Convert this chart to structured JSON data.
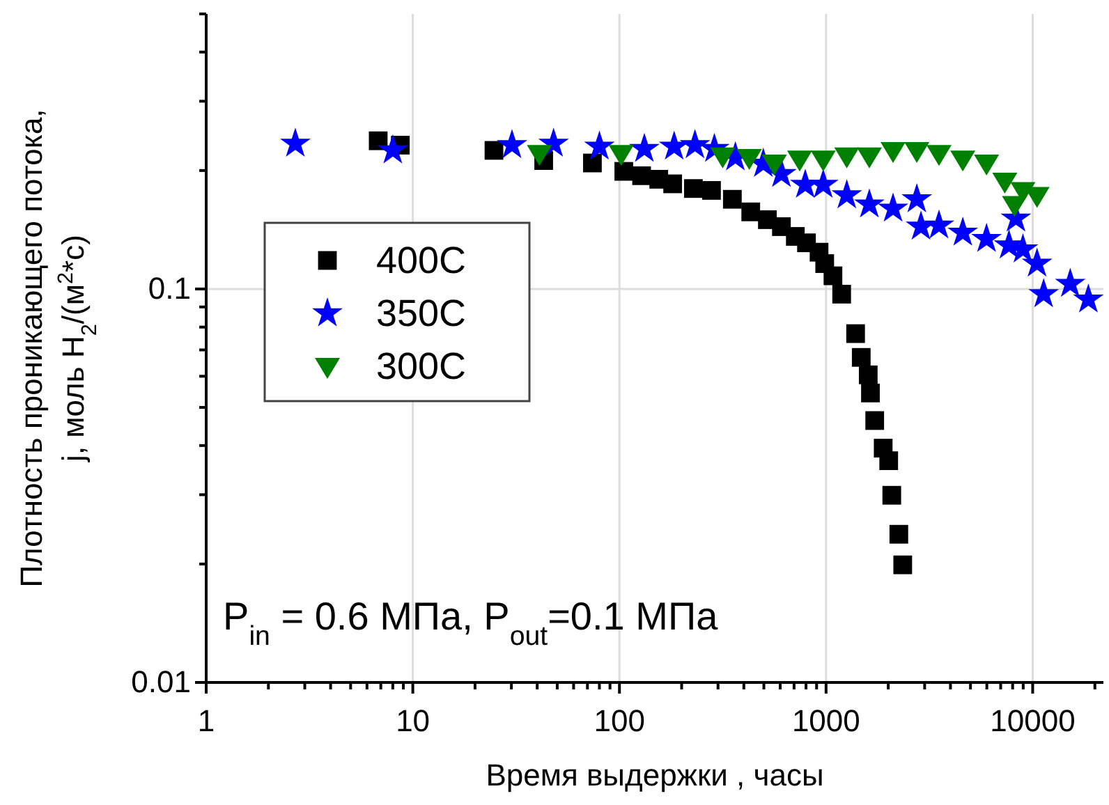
{
  "chart_data": {
    "type": "scatter",
    "xlabel": "Время выдержки , часы",
    "ylabel": "Плотность проникающего потока,\nj, моль H$_{2}$/(м$^{2}$*c)",
    "log": "xy",
    "grid": true,
    "legend": "left",
    "xlim": [
      1,
      22000
    ],
    "ylim": [
      0.01,
      0.5
    ],
    "xticks": [
      1,
      {
        "value": 2,
        "label": null
      },
      {
        "value": 3,
        "label": null
      },
      {
        "value": 4,
        "label": null
      },
      {
        "value": 5,
        "label": null
      },
      {
        "value": 6,
        "label": null
      },
      {
        "value": 7,
        "label": null
      },
      {
        "value": 8,
        "label": null
      },
      {
        "value": 9,
        "label": null
      },
      10,
      {
        "value": 20,
        "label": null
      },
      {
        "value": 30,
        "label": null
      },
      {
        "value": 40,
        "label": null
      },
      {
        "value": 50,
        "label": null
      },
      {
        "value": 60,
        "label": null
      },
      {
        "value": 70,
        "label": null
      },
      {
        "value": 80,
        "label": null
      },
      {
        "value": 90,
        "label": null
      },
      100,
      {
        "value": 200,
        "label": null
      },
      {
        "value": 300,
        "label": null
      },
      {
        "value": 400,
        "label": null
      },
      {
        "value": 500,
        "label": null
      },
      {
        "value": 600,
        "label": null
      },
      {
        "value": 700,
        "label": null
      },
      {
        "value": 800,
        "label": null
      },
      {
        "value": 900,
        "label": null
      },
      1000,
      {
        "value": 2000,
        "label": null
      },
      {
        "value": 3000,
        "label": null
      },
      {
        "value": 4000,
        "label": null
      },
      {
        "value": 5000,
        "label": null
      },
      {
        "value": 6000,
        "label": null
      },
      {
        "value": 7000,
        "label": null
      },
      {
        "value": 8000,
        "label": null
      },
      {
        "value": 9000,
        "label": null
      },
      10000,
      {
        "value": 20000,
        "label": null
      }
    ],
    "yticks": [
      0.01,
      {
        "value": 0.02,
        "label": null
      },
      {
        "value": 0.03,
        "label": null
      },
      {
        "value": 0.04,
        "label": null
      },
      {
        "value": 0.05,
        "label": null
      },
      {
        "value": 0.06,
        "label": null
      },
      {
        "value": 0.07,
        "label": null
      },
      {
        "value": 0.08,
        "label": null
      },
      {
        "value": 0.09,
        "label": null
      },
      0.1,
      {
        "value": 0.2,
        "label": null
      },
      {
        "value": 0.3,
        "label": null
      },
      {
        "value": 0.4,
        "label": null
      },
      {
        "value": 0.5,
        "label": null
      }
    ],
    "annotations": [
      "P$_{in}$ = 0.6 МПа, P$_{out}$=0.1 МПа"
    ],
    "series": [
      {
        "name": "400C",
        "color": "#000000",
        "marker": "square",
        "x": [
          6.8,
          8.7,
          24.7,
          43,
          74,
          105,
          128,
          155,
          181,
          228,
          279,
          352,
          432,
          520,
          608,
          710,
          804,
          925,
          985,
          1080,
          1190,
          1390,
          1480,
          1600,
          1640,
          1720,
          1890,
          2010,
          2080,
          2250,
          2350
        ],
        "values": [
          0.238,
          0.232,
          0.225,
          0.212,
          0.209,
          0.199,
          0.194,
          0.19,
          0.185,
          0.18,
          0.178,
          0.169,
          0.157,
          0.15,
          0.144,
          0.136,
          0.131,
          0.124,
          0.116,
          0.108,
          0.097,
          0.077,
          0.067,
          0.0605,
          0.0544,
          0.0463,
          0.0394,
          0.0366,
          0.0299,
          0.0238,
          0.0199
        ]
      },
      {
        "name": "350C",
        "color": "#0000ff",
        "marker": "star",
        "x": [
          2.7,
          8.0,
          30.2,
          48,
          80,
          132,
          184,
          232,
          288,
          364,
          497,
          608,
          793,
          969,
          1260,
          1620,
          2110,
          2750,
          2880,
          3520,
          4590,
          5980,
          7680,
          8300,
          8970,
          10500,
          11300,
          15200,
          18600
        ],
        "values": [
          0.234,
          0.225,
          0.232,
          0.234,
          0.23,
          0.227,
          0.23,
          0.232,
          0.227,
          0.216,
          0.208,
          0.196,
          0.184,
          0.184,
          0.173,
          0.164,
          0.16,
          0.169,
          0.144,
          0.145,
          0.139,
          0.134,
          0.129,
          0.151,
          0.126,
          0.116,
          0.097,
          0.103,
          0.094
        ]
      },
      {
        "name": "300C",
        "color": "#008000",
        "marker": "triangle",
        "x": [
          41,
          102,
          316,
          425,
          562,
          745,
          969,
          1260,
          1620,
          2110,
          2750,
          3520,
          4590,
          5980,
          7330,
          8170,
          8970,
          10500
        ],
        "values": [
          0.221,
          0.221,
          0.218,
          0.216,
          0.209,
          0.214,
          0.214,
          0.218,
          0.218,
          0.225,
          0.225,
          0.221,
          0.214,
          0.209,
          0.188,
          0.164,
          0.178,
          0.173
        ]
      }
    ]
  }
}
